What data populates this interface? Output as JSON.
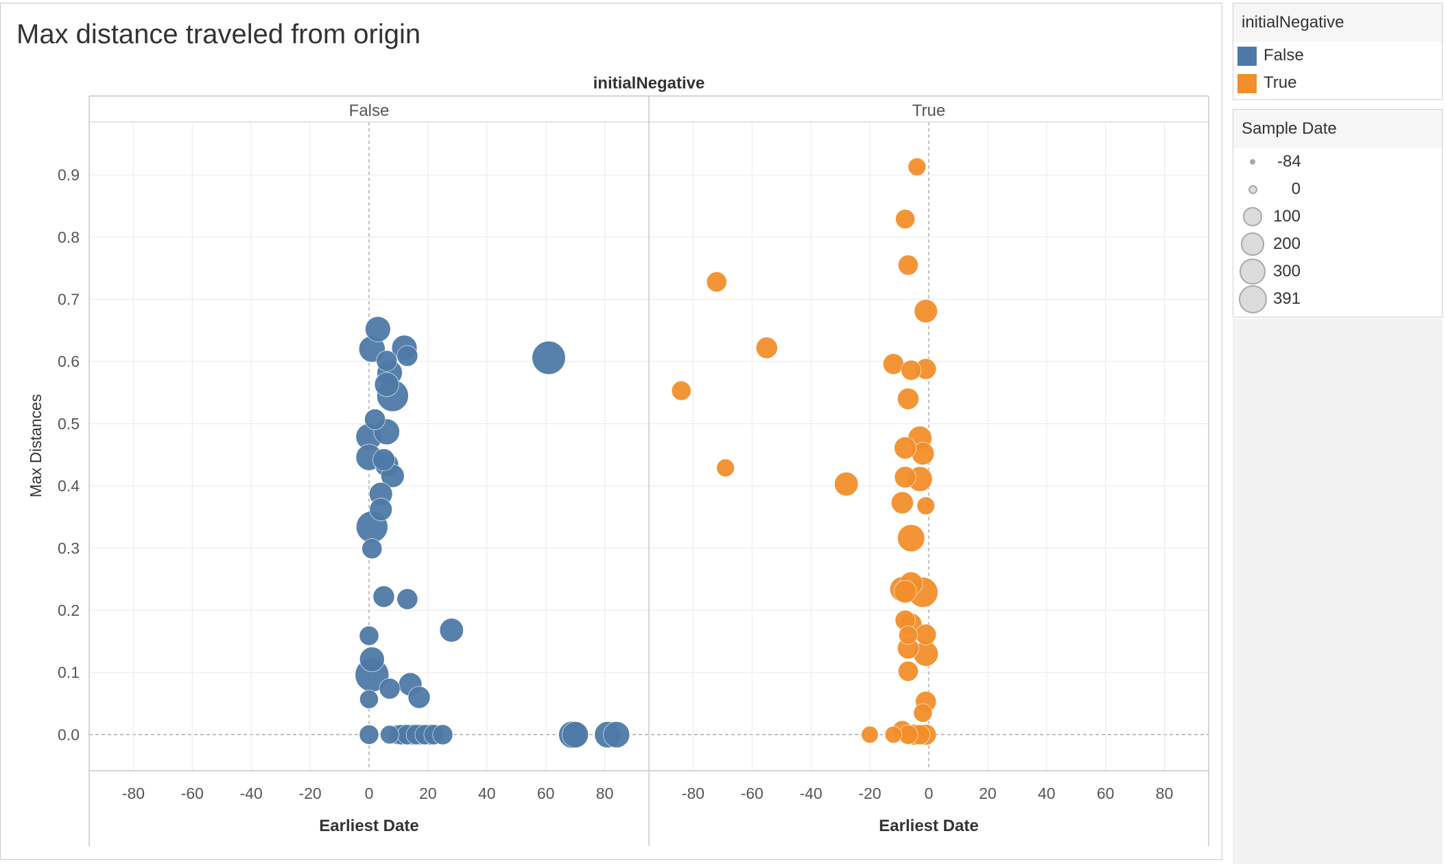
{
  "title": "Max distance traveled from origin",
  "chart_data": {
    "type": "scatter",
    "title": "Max distance traveled from origin",
    "facet_label": "initialNegative",
    "xlabel": "Earliest Date",
    "ylabel": "Max Distances",
    "xlim": [
      -95,
      95
    ],
    "ylim": [
      -0.058,
      0.985
    ],
    "x_ticks": [
      -80,
      -60,
      -40,
      -20,
      0,
      20,
      40,
      60,
      80
    ],
    "y_ticks": [
      0.0,
      0.1,
      0.2,
      0.3,
      0.4,
      0.5,
      0.6,
      0.7,
      0.8,
      0.9
    ],
    "y_tick_labels": [
      "0.0",
      "0.1",
      "0.2",
      "0.3",
      "0.4",
      "0.5",
      "0.6",
      "0.7",
      "0.8",
      "0.9"
    ],
    "grid": true,
    "legend_position": "right",
    "size_legend_title": "Sample Date",
    "panels": [
      {
        "name": "False",
        "color": "#4e79a7",
        "points": [
          [
            3,
            0.652,
            180
          ],
          [
            1,
            0.62,
            200
          ],
          [
            12,
            0.622,
            180
          ],
          [
            6,
            0.601,
            100
          ],
          [
            13,
            0.609,
            100
          ],
          [
            61,
            0.606,
            380
          ],
          [
            7,
            0.582,
            180
          ],
          [
            6,
            0.563,
            160
          ],
          [
            8,
            0.545,
            330
          ],
          [
            2,
            0.507,
            100
          ],
          [
            0,
            0.479,
            200
          ],
          [
            6,
            0.487,
            190
          ],
          [
            0,
            0.446,
            200
          ],
          [
            5,
            0.442,
            120
          ],
          [
            6,
            0.434,
            150
          ],
          [
            8,
            0.416,
            140
          ],
          [
            4,
            0.387,
            140
          ],
          [
            4,
            0.362,
            130
          ],
          [
            1,
            0.334,
            330
          ],
          [
            1,
            0.299,
            90
          ],
          [
            5,
            0.222,
            110
          ],
          [
            13,
            0.218,
            100
          ],
          [
            28,
            0.168,
            150
          ],
          [
            0,
            0.159,
            80
          ],
          [
            1,
            0.121,
            170
          ],
          [
            1,
            0.096,
            390
          ],
          [
            7,
            0.074,
            100
          ],
          [
            14,
            0.081,
            140
          ],
          [
            17,
            0.06,
            120
          ],
          [
            0,
            0.057,
            70
          ],
          [
            0,
            0.0,
            80
          ],
          [
            7,
            0.0,
            70
          ],
          [
            10,
            0.0,
            90
          ],
          [
            11,
            0.0,
            90
          ],
          [
            12,
            0.0,
            100
          ],
          [
            13,
            0.0,
            90
          ],
          [
            15,
            0.0,
            100
          ],
          [
            16,
            0.0,
            90
          ],
          [
            17,
            0.0,
            100
          ],
          [
            19,
            0.0,
            90
          ],
          [
            21,
            0.0,
            100
          ],
          [
            22,
            0.0,
            90
          ],
          [
            25,
            0.0,
            90
          ],
          [
            69,
            0.0,
            220
          ],
          [
            70,
            0.0,
            200
          ],
          [
            81,
            0.0,
            200
          ],
          [
            84,
            0.0,
            200
          ]
        ]
      },
      {
        "name": "True",
        "color": "#f28e2b",
        "points": [
          [
            -4,
            0.913,
            60
          ],
          [
            -8,
            0.829,
            80
          ],
          [
            -7,
            0.755,
            90
          ],
          [
            -72,
            0.728,
            90
          ],
          [
            -1,
            0.681,
            140
          ],
          [
            -55,
            0.622,
            110
          ],
          [
            -12,
            0.596,
            100
          ],
          [
            -6,
            0.586,
            90
          ],
          [
            -1,
            0.588,
            100
          ],
          [
            -84,
            0.553,
            80
          ],
          [
            -7,
            0.54,
            110
          ],
          [
            -3,
            0.477,
            150
          ],
          [
            -8,
            0.461,
            120
          ],
          [
            -2,
            0.452,
            130
          ],
          [
            -69,
            0.429,
            60
          ],
          [
            -8,
            0.414,
            110
          ],
          [
            -3,
            0.411,
            170
          ],
          [
            -28,
            0.403,
            150
          ],
          [
            -9,
            0.373,
            120
          ],
          [
            -1,
            0.368,
            60
          ],
          [
            -6,
            0.316,
            220
          ],
          [
            -9,
            0.234,
            170
          ],
          [
            -6,
            0.243,
            140
          ],
          [
            -8,
            0.23,
            130
          ],
          [
            -2,
            0.229,
            290
          ],
          [
            -8,
            0.184,
            90
          ],
          [
            -6,
            0.178,
            110
          ],
          [
            -7,
            0.16,
            70
          ],
          [
            -1,
            0.161,
            100
          ],
          [
            -7,
            0.139,
            110
          ],
          [
            -1,
            0.13,
            170
          ],
          [
            -7,
            0.102,
            90
          ],
          [
            -1,
            0.053,
            100
          ],
          [
            -2,
            0.035,
            70
          ],
          [
            -20,
            0.0,
            50
          ],
          [
            -12,
            0.0,
            50
          ],
          [
            -9,
            0.007,
            80
          ],
          [
            -7,
            0.0,
            80
          ],
          [
            -5,
            0.0,
            100
          ],
          [
            -3,
            0.0,
            90
          ],
          [
            -1,
            0.0,
            100
          ]
        ]
      }
    ]
  },
  "legend_color": {
    "title": "initialNegative",
    "items": [
      {
        "label": "False",
        "color": "#4e79a7"
      },
      {
        "label": "True",
        "color": "#f28e2b"
      }
    ]
  },
  "legend_size": {
    "title": "Sample Date",
    "items": [
      {
        "label": "-84",
        "value": -84
      },
      {
        "label": "0",
        "value": 0
      },
      {
        "label": "100",
        "value": 100
      },
      {
        "label": "200",
        "value": 200
      },
      {
        "label": "300",
        "value": 300
      },
      {
        "label": "391",
        "value": 391
      }
    ]
  }
}
